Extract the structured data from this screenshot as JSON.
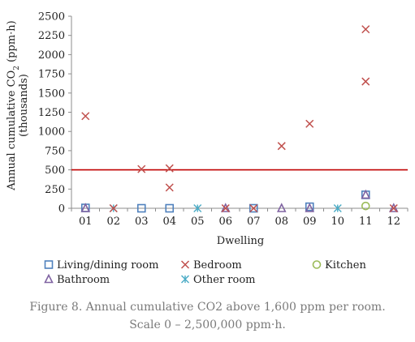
{
  "chart_data": {
    "type": "scatter",
    "categories": [
      "01",
      "02",
      "03",
      "04",
      "05",
      "06",
      "07",
      "08",
      "09",
      "10",
      "11",
      "12"
    ],
    "xlabel": "Dwelling",
    "ylabel_line1": "Annual cumulative CO",
    "ylabel_sub": "2",
    "ylabel_line1_end": " (ppm·h)",
    "ylabel_line2": "(thousands)",
    "ylim": [
      0,
      2500
    ],
    "yticks": [
      "0",
      "250",
      "500",
      "750",
      "1000",
      "1250",
      "1500",
      "1750",
      "2000",
      "2250",
      "2500"
    ],
    "grid": false,
    "threshold": {
      "value": 500,
      "color": "#c00000"
    },
    "legend_position": "bottom",
    "series": [
      {
        "name": "Living/dining room",
        "marker": "square",
        "color": "#4f81bd",
        "points": [
          [
            "01",
            5
          ],
          [
            "03",
            0
          ],
          [
            "04",
            0
          ],
          [
            "07",
            0
          ],
          [
            "09",
            20
          ],
          [
            "11",
            175
          ]
        ]
      },
      {
        "name": "Bedroom",
        "marker": "x",
        "color": "#c0504d",
        "points": [
          [
            "01",
            1200
          ],
          [
            "02",
            0
          ],
          [
            "03",
            510
          ],
          [
            "04",
            520
          ],
          [
            "04",
            270
          ],
          [
            "06",
            0
          ],
          [
            "07",
            0
          ],
          [
            "08",
            810
          ],
          [
            "09",
            1100
          ],
          [
            "11",
            2330
          ],
          [
            "11",
            1650
          ],
          [
            "12",
            0
          ]
        ]
      },
      {
        "name": "Kitchen",
        "marker": "circle",
        "color": "#9bbb59",
        "points": [
          [
            "11",
            30
          ]
        ]
      },
      {
        "name": "Bathroom",
        "marker": "triangle",
        "color": "#8064a2",
        "points": [
          [
            "01",
            0
          ],
          [
            "06",
            0
          ],
          [
            "08",
            0
          ],
          [
            "09",
            0
          ],
          [
            "11",
            175
          ],
          [
            "12",
            0
          ]
        ]
      },
      {
        "name": "Other room",
        "marker": "star",
        "color": "#4bacc6",
        "points": [
          [
            "02",
            0
          ],
          [
            "05",
            0
          ],
          [
            "10",
            0
          ]
        ]
      }
    ]
  },
  "caption": {
    "line1": "Figure 8. Annual cumulative CO2 above 1,600 ppm per room.",
    "line2": "Scale 0 – 2,500,000 ppm·h."
  }
}
